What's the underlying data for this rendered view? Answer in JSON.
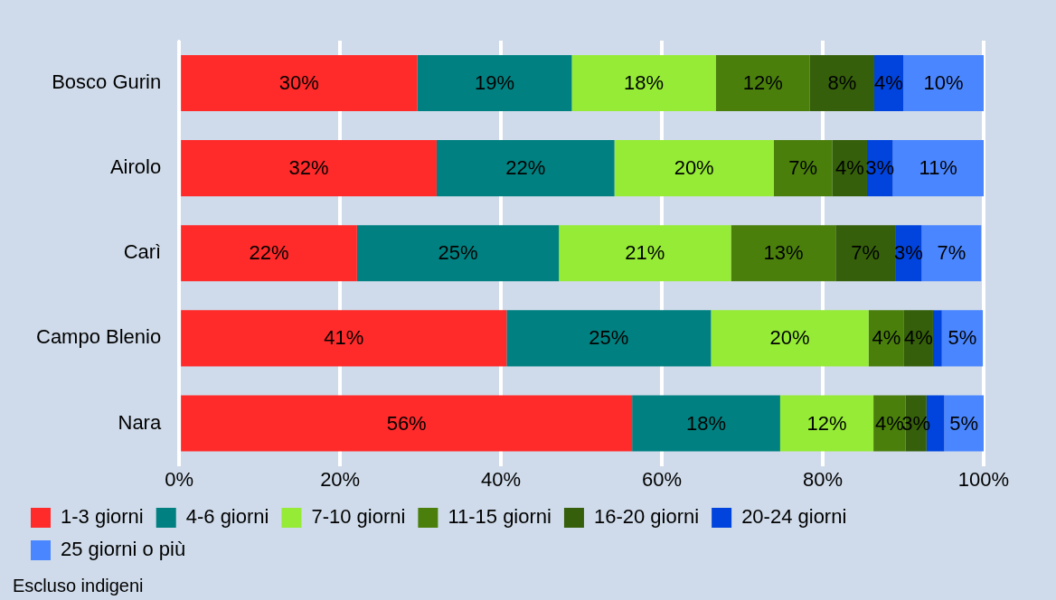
{
  "chart_data": {
    "type": "bar",
    "orientation": "horizontal",
    "stacked": true,
    "categories": [
      "Bosco Gurin",
      "Airolo",
      "Carì",
      "Campo Blenio",
      "Nara"
    ],
    "series": [
      {
        "name": "1-3 giorni",
        "color": "#ff2a2a",
        "values": [
          29.6,
          32.0,
          22.1,
          40.7,
          56.3
        ],
        "value_labels": [
          "30%",
          "32%",
          "22%",
          "41%",
          "56%"
        ]
      },
      {
        "name": "4-6 giorni",
        "color": "#008080",
        "values": [
          19.2,
          22.1,
          25.1,
          25.4,
          18.4
        ],
        "value_labels": [
          "19%",
          "22%",
          "25%",
          "25%",
          "18%"
        ]
      },
      {
        "name": "7-10 giorni",
        "color": "#95eb35",
        "values": [
          17.9,
          19.8,
          21.4,
          19.6,
          11.6
        ],
        "value_labels": [
          "18%",
          "20%",
          "21%",
          "20%",
          "12%"
        ]
      },
      {
        "name": "11-15 giorni",
        "color": "#4a7f0c",
        "values": [
          11.7,
          7.3,
          13.0,
          4.4,
          4.0
        ],
        "value_labels": [
          "12%",
          "7%",
          "13%",
          "4%",
          "4%"
        ]
      },
      {
        "name": "16-20 giorni",
        "color": "#355f0a",
        "values": [
          8.0,
          4.3,
          7.4,
          3.6,
          2.6
        ],
        "value_labels": [
          "8%",
          "4%",
          "7%",
          "4%",
          "3%"
        ]
      },
      {
        "name": "20-24 giorni",
        "color": "#0044dd",
        "values": [
          3.6,
          3.2,
          3.3,
          1.1,
          2.2
        ],
        "value_labels": [
          "4%",
          "3%",
          "3%",
          null,
          null
        ]
      },
      {
        "name": "25 giorni o più",
        "color": "#4a86ff",
        "values": [
          10.0,
          11.3,
          7.4,
          5.1,
          4.9
        ],
        "value_labels": [
          "10%",
          "11%",
          "7%",
          "5%",
          "5%"
        ]
      }
    ],
    "xlim": [
      0,
      100
    ],
    "xticks": [
      {
        "value": 0,
        "label": "0%"
      },
      {
        "value": 20,
        "label": "20%"
      },
      {
        "value": 40,
        "label": "40%"
      },
      {
        "value": 60,
        "label": "60%"
      },
      {
        "value": 80,
        "label": "80%"
      },
      {
        "value": 100,
        "label": "100%"
      }
    ],
    "grid": "x",
    "legend": "bottom",
    "annotations": [
      "Escluso indigeni"
    ]
  }
}
